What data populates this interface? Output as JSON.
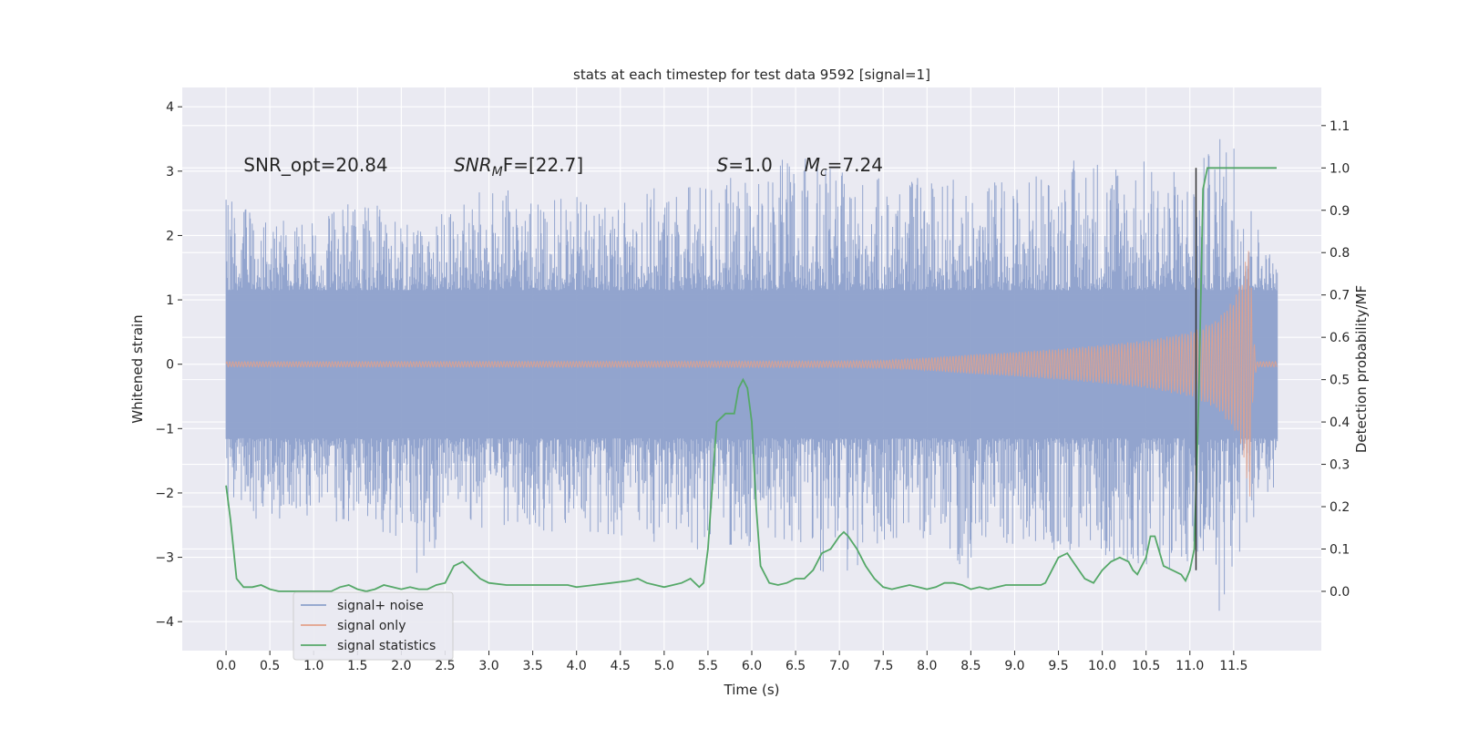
{
  "chart_data": {
    "type": "line",
    "title": "stats at each timestep for test data 9592 [signal=1]",
    "xlabel": "Time (s)",
    "ylabel": "Whitened strain",
    "y2label": "Detection probability/MF",
    "xlim": [
      -0.5,
      12.5
    ],
    "ylim": [
      -4.45,
      4.3
    ],
    "y2lim": [
      -0.14,
      1.19
    ],
    "x_ticks": [
      0.0,
      0.5,
      1.0,
      1.5,
      2.0,
      2.5,
      3.0,
      3.5,
      4.0,
      4.5,
      5.0,
      5.5,
      6.0,
      6.5,
      7.0,
      7.5,
      8.0,
      8.5,
      9.0,
      9.5,
      10.0,
      10.5,
      11.0,
      11.5
    ],
    "x_tick_labels": [
      "0.0",
      "0.5",
      "1.0",
      "1.5",
      "2.0",
      "2.5",
      "3.0",
      "3.5",
      "4.0",
      "4.5",
      "5.0",
      "5.5",
      "6.0",
      "6.5",
      "7.0",
      "7.5",
      "8.0",
      "8.5",
      "9.0",
      "9.5",
      "10.0",
      "10.5",
      "11.0",
      "11.5"
    ],
    "y_ticks": [
      -4,
      -3,
      -2,
      -1,
      0,
      1,
      2,
      3,
      4
    ],
    "y_tick_labels": [
      "−4",
      "−3",
      "−2",
      "−1",
      "0",
      "1",
      "2",
      "3",
      "4"
    ],
    "y2_ticks": [
      0.0,
      0.1,
      0.2,
      0.3,
      0.4,
      0.5,
      0.6,
      0.7,
      0.8,
      0.9,
      1.0,
      1.1
    ],
    "y2_tick_labels": [
      "0.0",
      "0.1",
      "0.2",
      "0.3",
      "0.4",
      "0.5",
      "0.6",
      "0.7",
      "0.8",
      "0.9",
      "1.0",
      "1.1"
    ],
    "grid": true,
    "legend_position": "bottom-left",
    "annotations": [
      {
        "name": "snr-opt",
        "main": "SNR_opt=20.84",
        "sub": "",
        "rest": "",
        "x": 0.2,
        "y": 3.1
      },
      {
        "name": "snr-mf",
        "main": "SNR",
        "sub": "M",
        "rest": "F=[22.7]",
        "x": 2.6,
        "y": 3.1
      },
      {
        "name": "s-value",
        "main": "S",
        "sub": "",
        "rest": "=1.0",
        "x": 5.6,
        "y": 3.1
      },
      {
        "name": "chirp-mass",
        "main": "M",
        "sub": "c",
        "rest": "=7.24",
        "x": 6.6,
        "y": 3.1
      }
    ],
    "series": [
      {
        "name": "signal+ noise",
        "axis": "left",
        "color": "#8da0cb",
        "t_range": [
          0.0,
          12.0
        ],
        "envelope": [
          [
            0.0,
            2.6,
            -2.3
          ],
          [
            0.5,
            2.2,
            -2.5
          ],
          [
            1.0,
            2.3,
            -2.4
          ],
          [
            1.5,
            2.6,
            -2.6
          ],
          [
            2.0,
            2.4,
            -2.7
          ],
          [
            2.25,
            2.3,
            -3.6
          ],
          [
            2.5,
            2.4,
            -2.5
          ],
          [
            3.0,
            2.8,
            -2.7
          ],
          [
            3.5,
            2.6,
            -2.6
          ],
          [
            4.0,
            2.6,
            -2.6
          ],
          [
            4.5,
            2.6,
            -2.7
          ],
          [
            5.0,
            2.8,
            -2.8
          ],
          [
            5.5,
            2.9,
            -2.9
          ],
          [
            6.0,
            2.9,
            -2.9
          ],
          [
            6.5,
            3.3,
            -2.8
          ],
          [
            7.0,
            3.0,
            -3.6
          ],
          [
            7.5,
            2.9,
            -2.8
          ],
          [
            8.0,
            2.9,
            -2.9
          ],
          [
            8.5,
            2.9,
            -3.4
          ],
          [
            9.0,
            2.9,
            -2.9
          ],
          [
            9.5,
            3.1,
            -3.0
          ],
          [
            10.0,
            3.4,
            -3.0
          ],
          [
            10.5,
            3.2,
            -3.2
          ],
          [
            11.0,
            3.0,
            -3.2
          ],
          [
            11.25,
            3.4,
            -4.1
          ],
          [
            11.5,
            3.9,
            -3.5
          ],
          [
            11.75,
            2.3,
            -2.3
          ],
          [
            12.0,
            1.5,
            -2.4
          ]
        ]
      },
      {
        "name": "signal only",
        "axis": "left",
        "color": "#e3a18a",
        "t_range": [
          0.0,
          12.0
        ],
        "envelope": [
          [
            0.0,
            0.04,
            -0.04
          ],
          [
            7.0,
            0.05,
            -0.05
          ],
          [
            7.5,
            0.06,
            -0.06
          ],
          [
            8.0,
            0.1,
            -0.1
          ],
          [
            8.5,
            0.15,
            -0.15
          ],
          [
            9.0,
            0.19,
            -0.19
          ],
          [
            9.5,
            0.24,
            -0.24
          ],
          [
            10.0,
            0.3,
            -0.3
          ],
          [
            10.5,
            0.37,
            -0.37
          ],
          [
            11.0,
            0.5,
            -0.5
          ],
          [
            11.3,
            0.68,
            -0.68
          ],
          [
            11.5,
            1.0,
            -1.0
          ],
          [
            11.6,
            1.35,
            -1.3
          ],
          [
            11.68,
            1.95,
            -2.25
          ],
          [
            11.72,
            0.5,
            -0.5
          ],
          [
            11.76,
            0.04,
            -0.04
          ],
          [
            12.0,
            0.04,
            -0.04
          ]
        ]
      },
      {
        "name": "signal statistics",
        "axis": "right",
        "color": "#55a868",
        "x": [
          0.0,
          0.05,
          0.12,
          0.2,
          0.3,
          0.4,
          0.5,
          0.6,
          0.7,
          0.8,
          0.9,
          1.0,
          1.1,
          1.2,
          1.3,
          1.4,
          1.5,
          1.6,
          1.7,
          1.8,
          1.9,
          2.0,
          2.1,
          2.2,
          2.3,
          2.4,
          2.5,
          2.6,
          2.7,
          2.8,
          2.9,
          3.0,
          3.2,
          3.4,
          3.6,
          3.7,
          3.8,
          3.9,
          4.0,
          4.2,
          4.4,
          4.6,
          4.7,
          4.8,
          4.9,
          5.0,
          5.1,
          5.2,
          5.3,
          5.4,
          5.45,
          5.5,
          5.55,
          5.6,
          5.7,
          5.75,
          5.8,
          5.85,
          5.9,
          5.95,
          6.0,
          6.05,
          6.1,
          6.2,
          6.3,
          6.4,
          6.5,
          6.6,
          6.7,
          6.8,
          6.9,
          7.0,
          7.05,
          7.1,
          7.2,
          7.3,
          7.4,
          7.5,
          7.6,
          7.7,
          7.8,
          7.9,
          8.0,
          8.1,
          8.2,
          8.3,
          8.4,
          8.5,
          8.6,
          8.7,
          8.8,
          8.9,
          9.0,
          9.1,
          9.2,
          9.3,
          9.35,
          9.4,
          9.5,
          9.6,
          9.7,
          9.8,
          9.9,
          10.0,
          10.1,
          10.2,
          10.3,
          10.35,
          10.4,
          10.5,
          10.55,
          10.6,
          10.7,
          10.8,
          10.9,
          10.95,
          11.0,
          11.05,
          11.1,
          11.15,
          11.2,
          11.25,
          11.3,
          11.4,
          11.5,
          11.6,
          11.7,
          11.8,
          11.9,
          11.99
        ],
        "values": [
          0.25,
          0.17,
          0.03,
          0.01,
          0.01,
          0.015,
          0.005,
          0.0,
          0.0,
          0.0,
          0.0,
          0.0,
          0.0,
          0.0,
          0.01,
          0.015,
          0.005,
          0.0,
          0.005,
          0.015,
          0.01,
          0.005,
          0.01,
          0.005,
          0.005,
          0.015,
          0.02,
          0.06,
          0.07,
          0.05,
          0.03,
          0.02,
          0.015,
          0.015,
          0.015,
          0.015,
          0.015,
          0.015,
          0.01,
          0.015,
          0.02,
          0.025,
          0.03,
          0.02,
          0.015,
          0.01,
          0.015,
          0.02,
          0.03,
          0.01,
          0.02,
          0.1,
          0.25,
          0.4,
          0.42,
          0.42,
          0.42,
          0.48,
          0.5,
          0.48,
          0.4,
          0.2,
          0.06,
          0.02,
          0.015,
          0.02,
          0.03,
          0.03,
          0.05,
          0.09,
          0.1,
          0.13,
          0.14,
          0.13,
          0.1,
          0.06,
          0.03,
          0.01,
          0.005,
          0.01,
          0.015,
          0.01,
          0.005,
          0.01,
          0.02,
          0.02,
          0.015,
          0.005,
          0.01,
          0.005,
          0.01,
          0.015,
          0.015,
          0.015,
          0.015,
          0.015,
          0.02,
          0.04,
          0.08,
          0.09,
          0.06,
          0.03,
          0.02,
          0.05,
          0.07,
          0.08,
          0.07,
          0.05,
          0.04,
          0.08,
          0.13,
          0.13,
          0.06,
          0.05,
          0.04,
          0.025,
          0.05,
          0.1,
          0.45,
          0.95,
          1.0,
          1.0,
          1.0,
          1.0,
          1.0,
          1.0,
          1.0,
          1.0,
          1.0,
          1.0
        ]
      }
    ],
    "vline": {
      "x": 11.07,
      "y_range": [
        -3.2,
        3.05
      ],
      "color": "#333333"
    },
    "legend": [
      {
        "label": "signal+ noise",
        "color": "#8da0cb"
      },
      {
        "label": "signal only",
        "color": "#e3a18a"
      },
      {
        "label": "signal statistics",
        "color": "#55a868"
      }
    ],
    "colors": {
      "plot_background": "#eaeaf2",
      "grid": "#ffffff",
      "text": "#262626"
    }
  }
}
